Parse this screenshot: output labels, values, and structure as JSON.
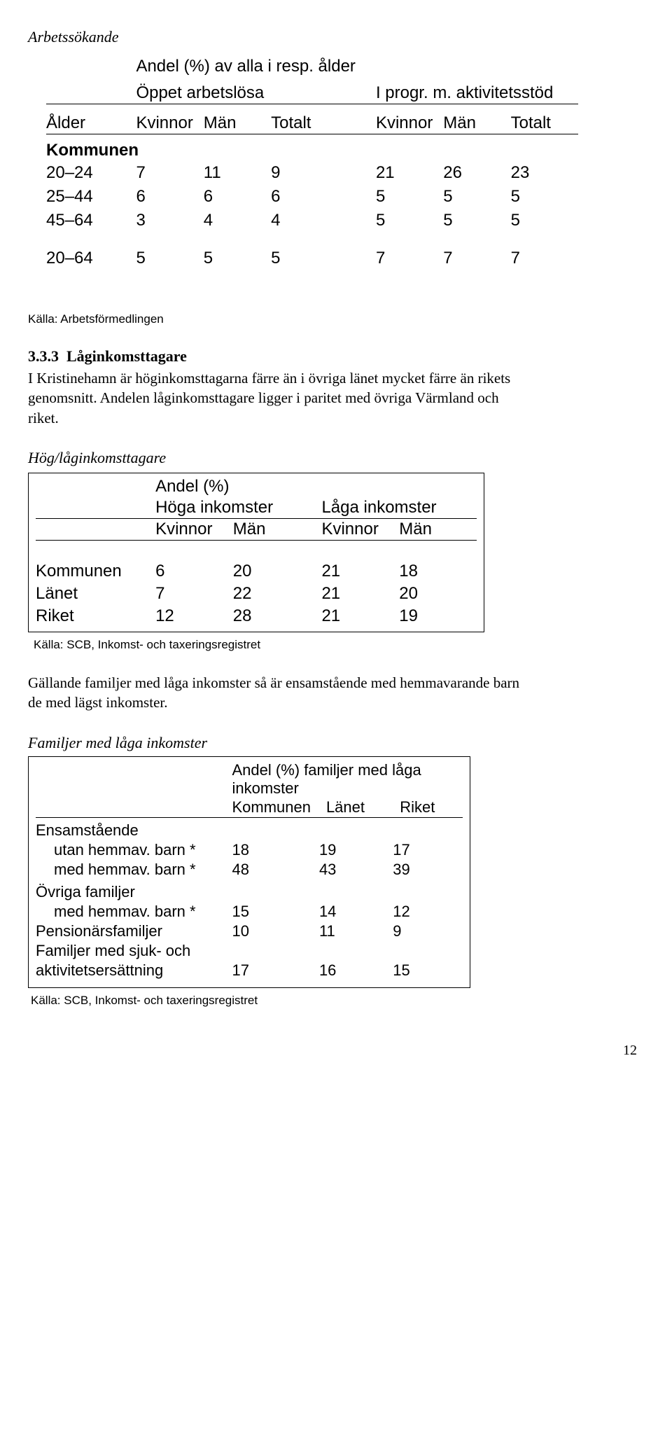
{
  "section1": {
    "heading": "Arbetssökande",
    "source": "Källa: Arbetsförmedlingen"
  },
  "table1": {
    "supertitle": "Andel (%) av alla i resp. ålder",
    "group_a": "Öppet arbetslösa",
    "group_b": "I progr. m. aktivitetsstöd",
    "head_age": "Ålder",
    "head_kvinnor": "Kvinnor",
    "head_man": "Män",
    "head_totalt": "Totalt",
    "region_label": "Kommunen",
    "rows": [
      {
        "age": "20–24",
        "a": [
          "7",
          "11",
          "9"
        ],
        "b": [
          "21",
          "26",
          "23"
        ]
      },
      {
        "age": "25–44",
        "a": [
          "6",
          "6",
          "6"
        ],
        "b": [
          "5",
          "5",
          "5"
        ]
      },
      {
        "age": "45–64",
        "a": [
          "3",
          "4",
          "4"
        ],
        "b": [
          "5",
          "5",
          "5"
        ]
      },
      {
        "age": "20–64",
        "a": [
          "5",
          "5",
          "5"
        ],
        "b": [
          "7",
          "7",
          "7"
        ]
      }
    ]
  },
  "section2": {
    "heading_no": "3.3.3",
    "heading": "Låginkomsttagare",
    "body": "I Kristinehamn är höginkomsttagarna färre än i övriga länet mycket färre än rikets genomsnitt. Andelen låginkomsttagare ligger i paritet med övriga Värmland och riket.",
    "subhead": "Hög/låginkomsttagare"
  },
  "table2": {
    "supertitle": "Andel (%)",
    "group_a": "Höga inkomster",
    "group_b": "Låga inkomster",
    "head_kvinnor": "Kvinnor",
    "head_man": "Män",
    "rows": [
      {
        "lbl": "Kommunen",
        "a": [
          "6",
          "20"
        ],
        "b": [
          "21",
          "18"
        ]
      },
      {
        "lbl": "Länet",
        "a": [
          "7",
          "22"
        ],
        "b": [
          "21",
          "20"
        ]
      },
      {
        "lbl": "Riket",
        "a": [
          "12",
          "28"
        ],
        "b": [
          "21",
          "19"
        ]
      }
    ],
    "source": "Källa: SCB, Inkomst- och taxeringsregistret"
  },
  "section3": {
    "body": "Gällande familjer med låga inkomster så är ensamstående med hemmavarande barn de med lägst inkomster.",
    "subhead": "Familjer med låga inkomster"
  },
  "table3": {
    "supertitle": "Andel (%) familjer med låga inkomster",
    "head_k": "Kommunen",
    "head_l": "Länet",
    "head_r": "Riket",
    "rows": [
      {
        "type": "group",
        "lbl": "Ensamstående"
      },
      {
        "type": "indent",
        "lbl": "utan hemmav. barn *",
        "v": [
          "18",
          "19",
          "17"
        ]
      },
      {
        "type": "indent",
        "lbl": "med hemmav. barn *",
        "v": [
          "48",
          "43",
          "39"
        ]
      },
      {
        "type": "group",
        "lbl": "Övriga familjer"
      },
      {
        "type": "indent",
        "lbl": "med hemmav. barn *",
        "v": [
          "15",
          "14",
          "12"
        ]
      },
      {
        "type": "plain",
        "lbl": "Pensionärsfamiljer",
        "v": [
          "10",
          "11",
          "9"
        ]
      },
      {
        "type": "plain",
        "lbl": "Familjer med sjuk- och"
      },
      {
        "type": "plain",
        "lbl": "aktivitetsersättning",
        "v": [
          "17",
          "16",
          "15"
        ]
      }
    ],
    "source": "Källa: SCB, Inkomst- och taxeringsregistret"
  },
  "page_no": "12"
}
